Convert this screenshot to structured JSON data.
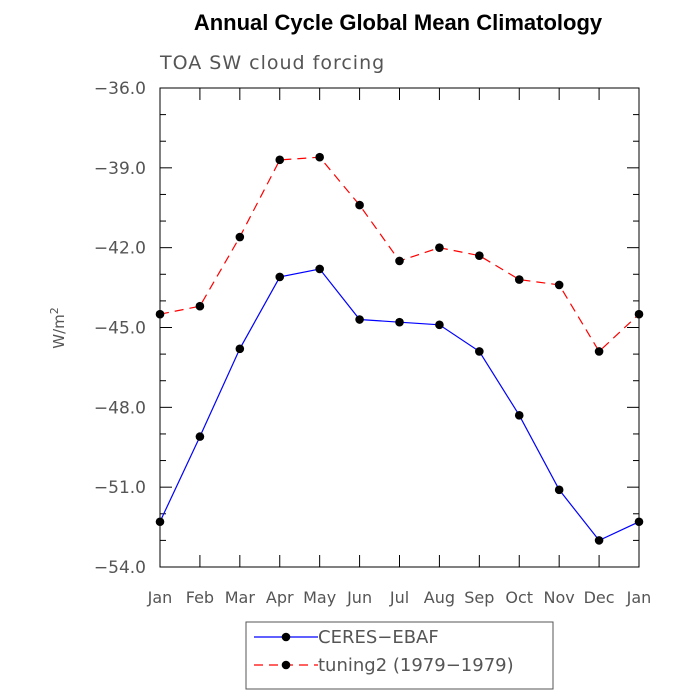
{
  "chart_data": {
    "type": "line",
    "title": "Annual Cycle Global Mean Climatology",
    "subtitle": "TOA SW cloud forcing",
    "ylabel": "W/m",
    "ylabel_superscript": "2",
    "xlabel": "",
    "categories": [
      "Jan",
      "Feb",
      "Mar",
      "Apr",
      "May",
      "Jun",
      "Jul",
      "Aug",
      "Sep",
      "Oct",
      "Nov",
      "Dec",
      "Jan"
    ],
    "ylim": [
      -54.0,
      -36.0
    ],
    "yticks": [
      -36.0,
      -39.0,
      -42.0,
      -45.0,
      -48.0,
      -51.0,
      -54.0
    ],
    "ytick_labels": [
      "−36.0",
      "−39.0",
      "−42.0",
      "−45.0",
      "−48.0",
      "−51.0",
      "−54.0"
    ],
    "grid": false,
    "legend_position": "bottom",
    "series": [
      {
        "name": "CERES−EBAF",
        "color": "#0000ff",
        "dashed": false,
        "values": [
          -52.3,
          -49.1,
          -45.8,
          -43.1,
          -42.8,
          -44.7,
          -44.8,
          -44.9,
          -45.9,
          -48.3,
          -51.1,
          -53.0,
          -52.3
        ]
      },
      {
        "name": "tuning2 (1979−1979)",
        "color": "#ff0000",
        "dashed": true,
        "values": [
          -44.5,
          -44.2,
          -41.6,
          -38.7,
          -38.6,
          -40.4,
          -42.5,
          -42.0,
          -42.3,
          -43.2,
          -43.4,
          -45.9,
          -44.5
        ]
      }
    ]
  }
}
